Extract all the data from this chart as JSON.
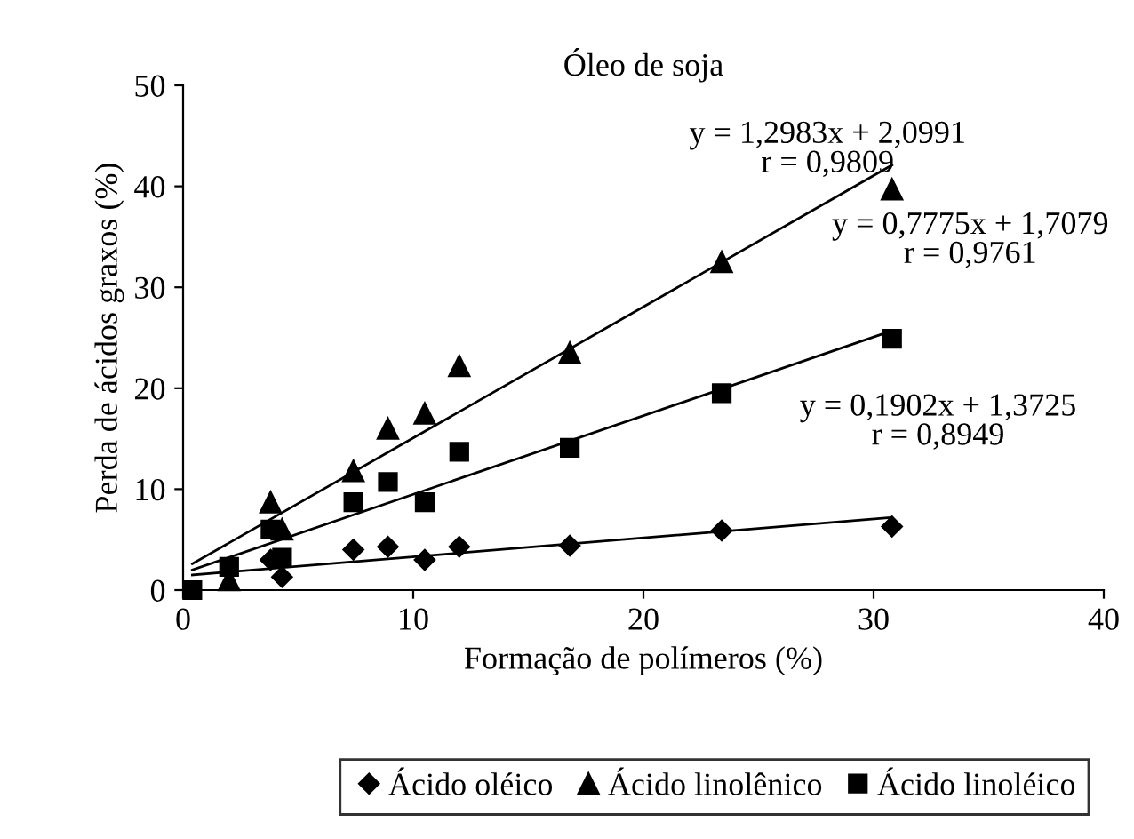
{
  "chart_data": {
    "type": "scatter",
    "title": "Óleo de soja",
    "xlabel": "Formação de polímeros (%)",
    "ylabel": "Perda de ácidos graxos (%)",
    "xlim": [
      0,
      40
    ],
    "xticks": [
      0,
      10,
      20,
      30,
      40
    ],
    "ylim": [
      0,
      50
    ],
    "yticks": [
      0,
      10,
      20,
      30,
      40,
      50
    ],
    "grid": false,
    "legend": "bottom",
    "series": [
      {
        "name": "Ácido oléico",
        "color": "#000000",
        "marker": "diamond",
        "x": [
          3.8,
          4.3,
          7.4,
          8.9,
          10.5,
          12,
          16.8,
          23.4,
          30.8
        ],
        "values": [
          3,
          1.3,
          4,
          4.3,
          3,
          4.3,
          4.4,
          5.9,
          6.3
        ]
      },
      {
        "name": "Ácido linolênico",
        "color": "#000000",
        "marker": "triangle",
        "x": [
          2,
          3.8,
          4.3,
          7.4,
          8.9,
          10.5,
          12,
          16.8,
          23.4,
          30.8
        ],
        "values": [
          1,
          8.7,
          6,
          11.8,
          16,
          17.5,
          22.2,
          23.5,
          32.5,
          39.7
        ]
      },
      {
        "name": "Ácido linoléico",
        "color": "#000000",
        "marker": "square",
        "x": [
          0.4,
          2,
          3.8,
          4.3,
          7.4,
          8.9,
          10.5,
          12,
          16.8,
          23.4,
          30.8
        ],
        "values": [
          0,
          2.3,
          6,
          3.2,
          8.7,
          10.7,
          8.7,
          13.7,
          14.1,
          19.5,
          24.9
        ]
      },
      {
        "type": "line",
        "color": "#000000",
        "x": [
          0.4,
          30.8
        ],
        "values": [
          2.6,
          42.1
        ]
      },
      {
        "type": "line",
        "color": "#000000",
        "x": [
          0.4,
          30.8
        ],
        "values": [
          2.0,
          25.7
        ]
      },
      {
        "type": "line",
        "color": "#000000",
        "x": [
          0.4,
          30.8
        ],
        "values": [
          1.5,
          7.2
        ]
      }
    ],
    "annotations": [
      "y = 1,2983x + 2,0991\nr = 0,9809",
      "y = 0,7775x + 1,7079\nr = 0,9761",
      "y = 0,1902x + 1,3725\nr = 0,8949"
    ]
  }
}
